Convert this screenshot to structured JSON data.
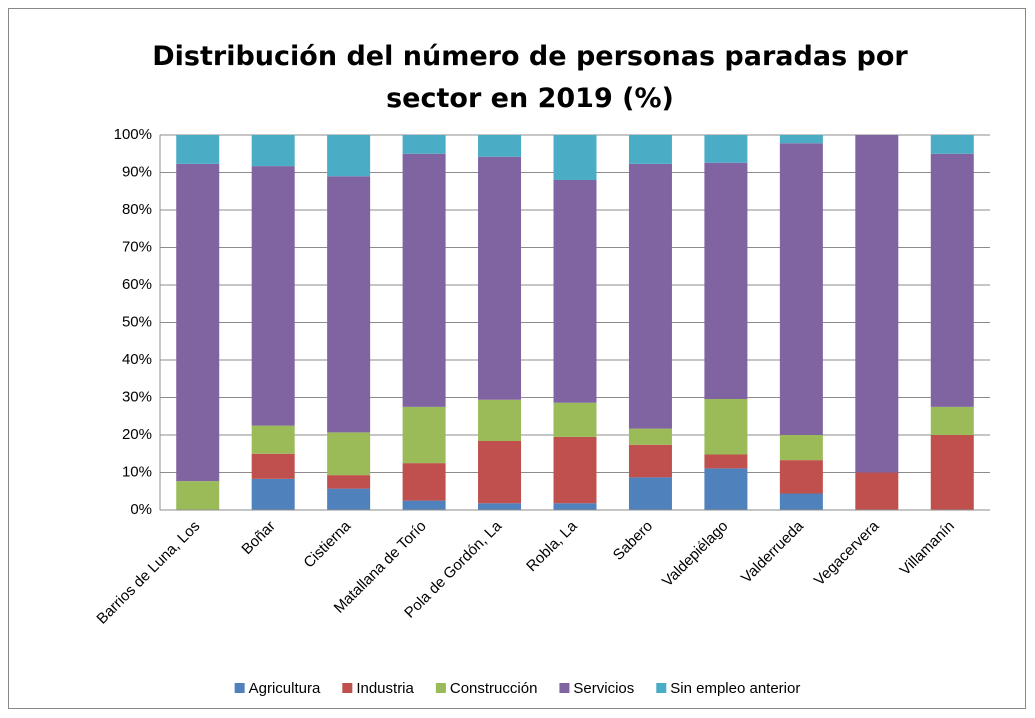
{
  "chart_data": {
    "type": "stacked_bar",
    "title": "Distribución del número de personas paradas por sector en 2019 (%)",
    "categories": [
      "Barrios de Luna, Los",
      "Boñar",
      "Cistierna",
      "Matallana de Torío",
      "Pola de Gordón, La",
      "Robla, La",
      "Sabero",
      "Valdepiélago",
      "Valderrueda",
      "Vegacervera",
      "Villamanín"
    ],
    "series": [
      {
        "name": "Agricultura",
        "color": "#4f81bd",
        "values": [
          0,
          8.3,
          5.7,
          2.5,
          1.8,
          1.8,
          8.7,
          11.1,
          4.4,
          0,
          0
        ]
      },
      {
        "name": "Industria",
        "color": "#c0504d",
        "values": [
          0,
          6.7,
          3.6,
          10,
          16.6,
          17.7,
          8.7,
          3.7,
          8.9,
          10,
          20
        ]
      },
      {
        "name": "Construcción",
        "color": "#9bbb59",
        "values": [
          7.7,
          7.5,
          11.4,
          15,
          11,
          9.1,
          4.3,
          14.8,
          6.7,
          0,
          7.5
        ]
      },
      {
        "name": "Servicios",
        "color": "#8064a2",
        "values": [
          84.6,
          69.2,
          68.3,
          67.5,
          64.8,
          59.4,
          70.6,
          63,
          77.8,
          90,
          67.5
        ]
      },
      {
        "name": "Sin empleo anterior",
        "color": "#4bacc6",
        "values": [
          7.7,
          8.3,
          11,
          5,
          5.8,
          12,
          7.7,
          7.4,
          2.2,
          0,
          5
        ]
      }
    ],
    "ylim": [
      0,
      100
    ],
    "yticks": [
      {
        "value": 0,
        "label": "0%"
      },
      {
        "value": 10,
        "label": "10%"
      },
      {
        "value": 20,
        "label": "20%"
      },
      {
        "value": 30,
        "label": "30%"
      },
      {
        "value": 40,
        "label": "40%"
      },
      {
        "value": 50,
        "label": "50%"
      },
      {
        "value": 60,
        "label": "60%"
      },
      {
        "value": 70,
        "label": "70%"
      },
      {
        "value": 80,
        "label": "80%"
      },
      {
        "value": 90,
        "label": "90%"
      },
      {
        "value": 100,
        "label": "100%"
      }
    ],
    "grid": true,
    "legend": "bottom"
  }
}
